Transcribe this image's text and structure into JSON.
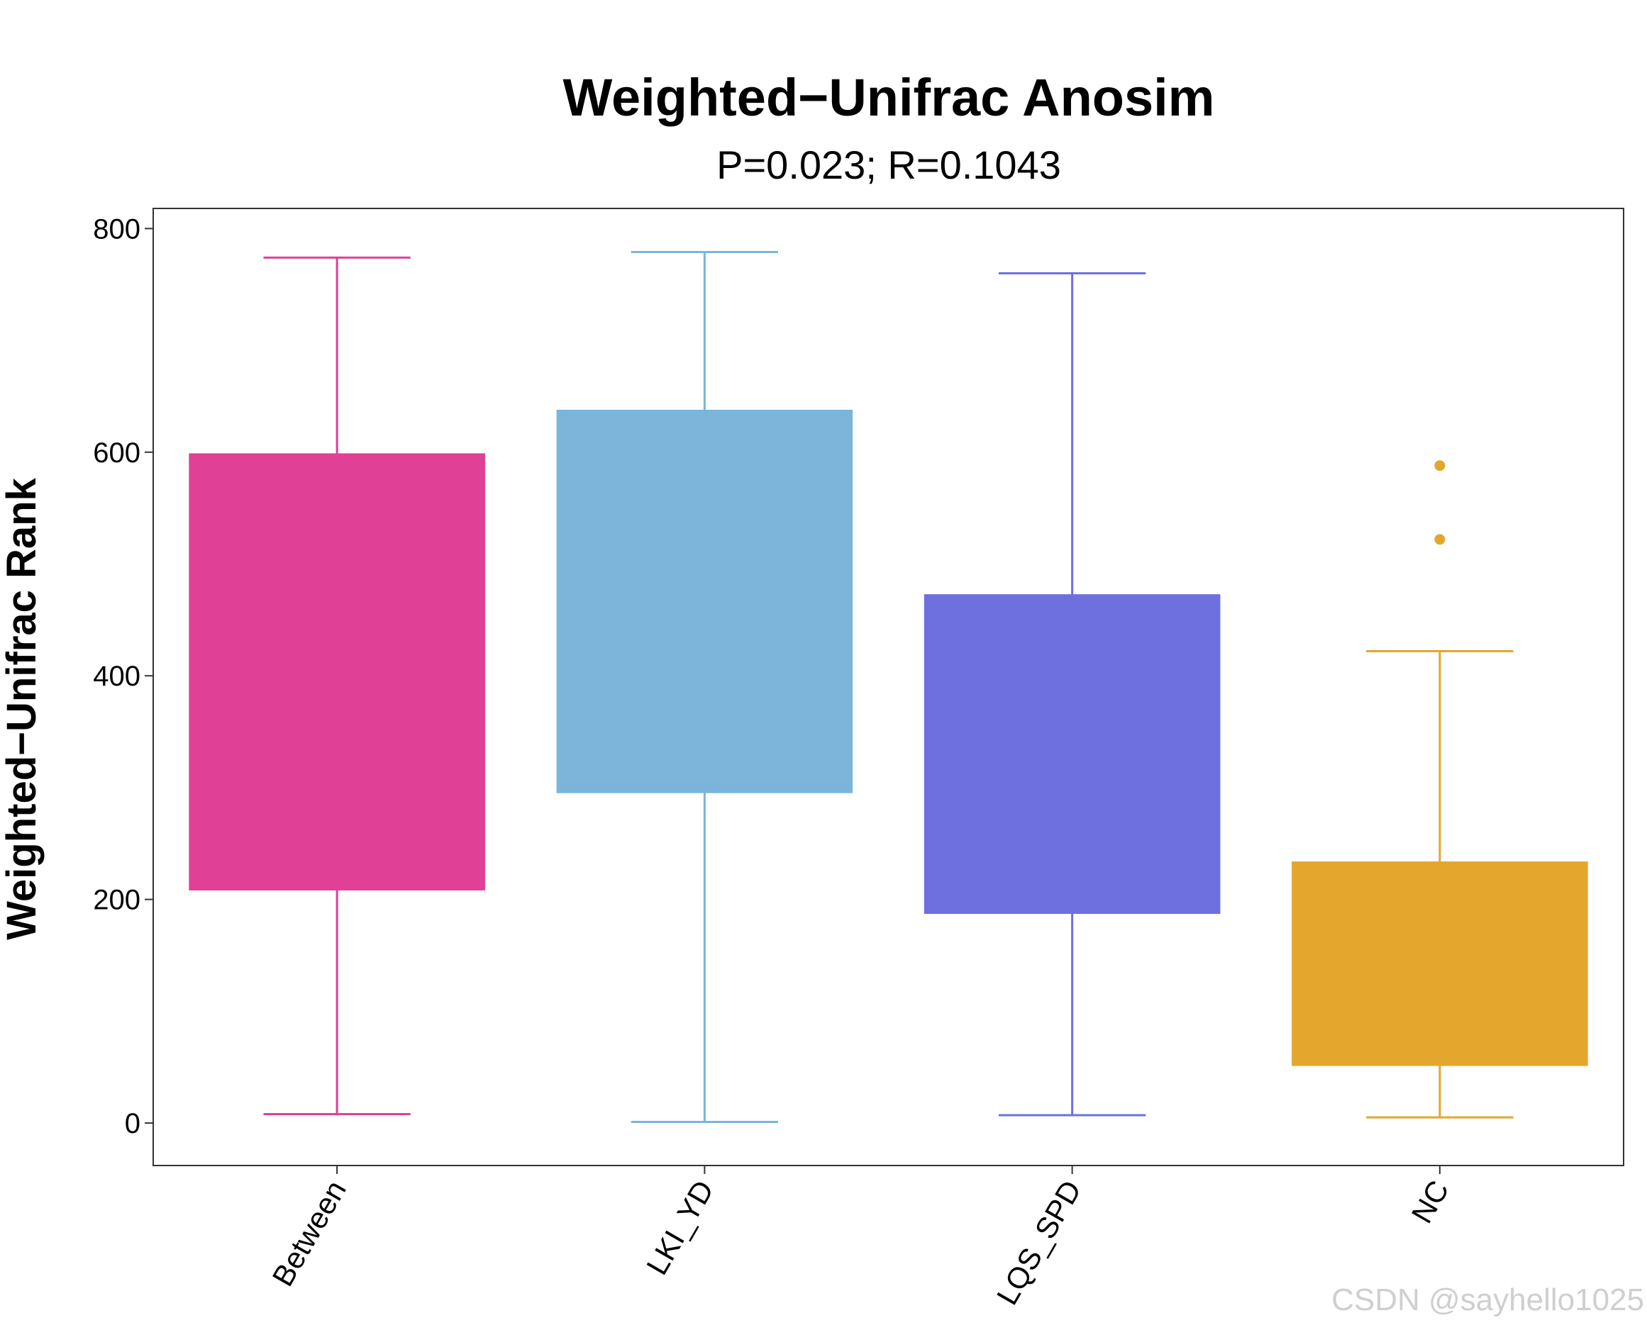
{
  "chart_data": {
    "type": "boxplot",
    "title": "Weighted−Unifrac Anosim",
    "subtitle": "P=0.023; R=0.1043",
    "ylabel": "Weighted−Unifrac Rank",
    "xlabel": "",
    "ylim": [
      -38,
      818
    ],
    "yticks": [
      0,
      200,
      400,
      600,
      800
    ],
    "grid": false,
    "legend": "none",
    "categories": [
      "Between",
      "LKI_YD",
      "LQS_SPD",
      "NC"
    ],
    "series": [
      {
        "category": "Between",
        "color": "#E04096",
        "whisker_low": 8,
        "q1": 209,
        "q3": 598,
        "whisker_high": 774,
        "outliers": []
      },
      {
        "category": "LKI_YD",
        "color": "#7BB5D9",
        "whisker_low": 1,
        "q1": 296,
        "q3": 637,
        "whisker_high": 779,
        "outliers": []
      },
      {
        "category": "LQS_SPD",
        "color": "#6E70DF",
        "whisker_low": 7,
        "q1": 188,
        "q3": 472,
        "whisker_high": 760,
        "outliers": []
      },
      {
        "category": "NC",
        "color": "#E3A72E",
        "whisker_low": 5,
        "q1": 52,
        "q3": 233,
        "whisker_high": 422,
        "outliers": [
          522,
          588
        ]
      }
    ]
  },
  "watermark": "CSDN @sayhello1025"
}
